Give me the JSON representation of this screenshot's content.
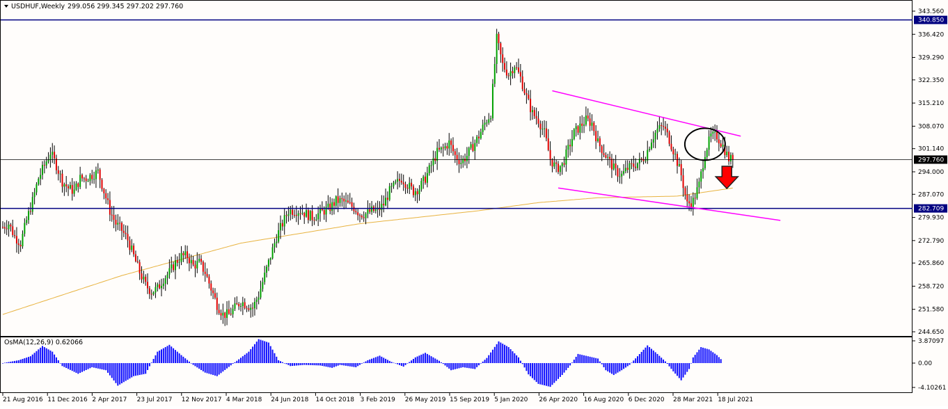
{
  "main_title": {
    "symbol_timeframe": "USDHUF,Weekly",
    "ohlc": "299.056 299.345 297.202 297.760"
  },
  "indicator_title": "OsMA(12,26,9) 0.62066",
  "colors": {
    "background": "#fffdfb",
    "bull_candle": "#00a000",
    "bear_candle": "#e00000",
    "wick": "#000000",
    "ma_line": "#e8b340",
    "channel": "#ff00ff",
    "level_line": "#000080",
    "current_price_line": "#000000",
    "histogram": "#1010ff",
    "arrow": "#ff0000"
  },
  "chart_data": [
    {
      "type": "candlestick",
      "ylim": [
        244.65,
        343.56
      ],
      "y_ticks": [
        "343.560",
        "336.420",
        "329.290",
        "322.350",
        "315.210",
        "308.070",
        "301.140",
        "294.000",
        "287.070",
        "279.930",
        "272.790",
        "265.860",
        "258.720",
        "251.580",
        "244.650"
      ],
      "x_ticks": [
        "21 Aug 2016",
        "11 Dec 2016",
        "2 Apr 2017",
        "23 Jul 2017",
        "12 Nov 2017",
        "4 Mar 2018",
        "24 Jun 2018",
        "14 Oct 2018",
        "3 Feb 2019",
        "26 May 2019",
        "15 Sep 2019",
        "5 Jan 2020",
        "26 Apr 2020",
        "16 Aug 2020",
        "6 Dec 2020",
        "28 Mar 2021",
        "18 Jul 2021"
      ],
      "price_labels": [
        {
          "text": "340.850",
          "value": 340.85,
          "kind": "level"
        },
        {
          "text": "297.760",
          "value": 297.76,
          "kind": "current"
        },
        {
          "text": "282.709",
          "value": 282.709,
          "kind": "level"
        }
      ],
      "anchors": [
        [
          0,
          277
        ],
        [
          3,
          278
        ],
        [
          6,
          274
        ],
        [
          9,
          272
        ],
        [
          12,
          279
        ],
        [
          15,
          285
        ],
        [
          18,
          292
        ],
        [
          21,
          296
        ],
        [
          24,
          300
        ],
        [
          27,
          296
        ],
        [
          30,
          291
        ],
        [
          33,
          289
        ],
        [
          36,
          288
        ],
        [
          39,
          292
        ],
        [
          42,
          292
        ],
        [
          45,
          293
        ],
        [
          48,
          294
        ],
        [
          51,
          288
        ],
        [
          54,
          282
        ],
        [
          57,
          278
        ],
        [
          60,
          276
        ],
        [
          63,
          273
        ],
        [
          66,
          268
        ],
        [
          69,
          263
        ],
        [
          72,
          259
        ],
        [
          75,
          257
        ],
        [
          78,
          258
        ],
        [
          81,
          261
        ],
        [
          84,
          263
        ],
        [
          87,
          266
        ],
        [
          90,
          268
        ],
        [
          93,
          268
        ],
        [
          96,
          265
        ],
        [
          99,
          266
        ],
        [
          102,
          263
        ],
        [
          105,
          258
        ],
        [
          108,
          253
        ],
        [
          111,
          250
        ],
        [
          114,
          250
        ],
        [
          117,
          252
        ],
        [
          120,
          254
        ],
        [
          123,
          253
        ],
        [
          126,
          252
        ],
        [
          129,
          256
        ],
        [
          132,
          262
        ],
        [
          135,
          268
        ],
        [
          138,
          274
        ],
        [
          141,
          278
        ],
        [
          144,
          282
        ],
        [
          147,
          282
        ],
        [
          150,
          282
        ],
        [
          153,
          281
        ],
        [
          156,
          280
        ],
        [
          159,
          281
        ],
        [
          162,
          282
        ],
        [
          165,
          283
        ],
        [
          168,
          285
        ],
        [
          171,
          285
        ],
        [
          174,
          284
        ],
        [
          177,
          283
        ],
        [
          180,
          281
        ],
        [
          183,
          281
        ],
        [
          186,
          282
        ],
        [
          189,
          282
        ],
        [
          192,
          284
        ],
        [
          195,
          288
        ],
        [
          198,
          290
        ],
        [
          201,
          292
        ],
        [
          204,
          290
        ],
        [
          207,
          288
        ],
        [
          210,
          289
        ],
        [
          213,
          292
        ],
        [
          216,
          296
        ],
        [
          219,
          300
        ],
        [
          222,
          301
        ],
        [
          225,
          303
        ],
        [
          228,
          299
        ],
        [
          231,
          297
        ],
        [
          234,
          299
        ],
        [
          237,
          302
        ],
        [
          240,
          305
        ],
        [
          243,
          309
        ],
        [
          246,
          312
        ],
        [
          249,
          335
        ],
        [
          252,
          327
        ],
        [
          255,
          324
        ],
        [
          258,
          327
        ],
        [
          261,
          323
        ],
        [
          264,
          317
        ],
        [
          267,
          312
        ],
        [
          270,
          310
        ],
        [
          273,
          306
        ],
        [
          276,
          298
        ],
        [
          279,
          295
        ],
        [
          282,
          296
        ],
        [
          285,
          301
        ],
        [
          288,
          306
        ],
        [
          291,
          308
        ],
        [
          294,
          310
        ],
        [
          297,
          309
        ],
        [
          300,
          303
        ],
        [
          303,
          300
        ],
        [
          306,
          297
        ],
        [
          309,
          294
        ],
        [
          312,
          293
        ],
        [
          315,
          295
        ],
        [
          318,
          296
        ],
        [
          321,
          297
        ],
        [
          324,
          299
        ],
        [
          327,
          304
        ],
        [
          330,
          307
        ],
        [
          333,
          308
        ],
        [
          336,
          304
        ],
        [
          339,
          299
        ],
        [
          342,
          293
        ],
        [
          345,
          284
        ],
        [
          348,
          285
        ],
        [
          351,
          290
        ],
        [
          354,
          300
        ],
        [
          357,
          305
        ],
        [
          360,
          305
        ],
        [
          363,
          302
        ],
        [
          366,
          298
        ],
        [
          368,
          297.76
        ]
      ],
      "series": [
        {
          "name": "",
          "kind": "moving_average",
          "points": [
            [
              0,
              250
            ],
            [
              60,
              262
            ],
            [
              120,
              272
            ],
            [
              180,
              278
            ],
            [
              240,
              282
            ],
            [
              270,
              284.5
            ],
            [
              300,
              286
            ],
            [
              340,
              286.5
            ],
            [
              368,
              289
            ]
          ]
        }
      ],
      "drawn_objects": {
        "resistance_level": 340.85,
        "support_level": 282.709,
        "current_price": 297.76,
        "channel_upper": [
          [
            277,
            319
          ],
          [
            372,
            305
          ]
        ],
        "channel_lower": [
          [
            280,
            289
          ],
          [
            392,
            279
          ]
        ],
        "highlight_circle_center": [
          354,
          302.5
        ],
        "down_arrow_at": [
          365,
          294
        ]
      }
    },
    {
      "type": "histogram",
      "name": "OsMA(12,26,9)",
      "ylim": [
        -4.1,
        3.9
      ],
      "y_ticks": [
        "3.87097",
        "0.00",
        "-4.10261"
      ],
      "value_anchors": [
        [
          0,
          0
        ],
        [
          8,
          0.5
        ],
        [
          14,
          1.2
        ],
        [
          20,
          3.0
        ],
        [
          25,
          2.0
        ],
        [
          30,
          -0.5
        ],
        [
          38,
          -1.8
        ],
        [
          45,
          -0.7
        ],
        [
          52,
          -1.2
        ],
        [
          58,
          -3.8
        ],
        [
          66,
          -2.2
        ],
        [
          72,
          -1.8
        ],
        [
          78,
          2.0
        ],
        [
          84,
          3.2
        ],
        [
          90,
          1.4
        ],
        [
          96,
          -0.3
        ],
        [
          102,
          -1.6
        ],
        [
          108,
          -2.2
        ],
        [
          113,
          -0.9
        ],
        [
          118,
          0.4
        ],
        [
          124,
          2.0
        ],
        [
          129,
          4.2
        ],
        [
          134,
          3.6
        ],
        [
          139,
          0.5
        ],
        [
          145,
          -0.5
        ],
        [
          152,
          -0.3
        ],
        [
          160,
          -0.4
        ],
        [
          166,
          -0.8
        ],
        [
          170,
          -0.3
        ],
        [
          178,
          -0.7
        ],
        [
          184,
          0.5
        ],
        [
          190,
          1.3
        ],
        [
          196,
          0.2
        ],
        [
          202,
          -0.6
        ],
        [
          208,
          1.0
        ],
        [
          213,
          1.8
        ],
        [
          220,
          0.4
        ],
        [
          226,
          -1.2
        ],
        [
          232,
          -0.7
        ],
        [
          238,
          -1.0
        ],
        [
          244,
          0.9
        ],
        [
          250,
          3.8
        ],
        [
          255,
          2.8
        ],
        [
          260,
          1.0
        ],
        [
          265,
          -1.9
        ],
        [
          270,
          -3.5
        ],
        [
          276,
          -4.0
        ],
        [
          282,
          -2.0
        ],
        [
          286,
          -0.4
        ],
        [
          290,
          1.6
        ],
        [
          295,
          1.2
        ],
        [
          300,
          0.8
        ],
        [
          304,
          -1.2
        ],
        [
          308,
          -2.0
        ],
        [
          312,
          -1.2
        ],
        [
          316,
          -0.3
        ],
        [
          320,
          1.2
        ],
        [
          325,
          3.1
        ],
        [
          330,
          1.6
        ],
        [
          334,
          0.3
        ],
        [
          338,
          -1.4
        ],
        [
          342,
          -2.9
        ],
        [
          346,
          -1.0
        ],
        [
          348,
          1.0
        ],
        [
          352,
          2.8
        ],
        [
          356,
          2.4
        ],
        [
          360,
          1.4
        ],
        [
          362,
          0.7
        ]
      ]
    }
  ]
}
